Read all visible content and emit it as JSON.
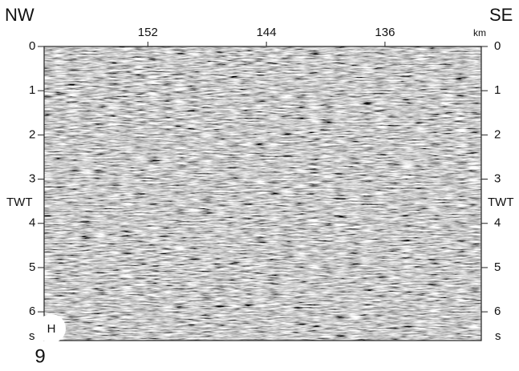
{
  "left_label": "NW",
  "right_label": "SE",
  "x_axis": {
    "ticks": [
      152,
      144,
      136
    ],
    "unit": "km",
    "xlim": [
      159,
      129.5
    ]
  },
  "y_axis": {
    "label": "TWT",
    "unit": "s",
    "ticks": [
      0,
      1,
      2,
      3,
      4,
      5,
      6
    ],
    "ylim": [
      0,
      6.65
    ]
  },
  "panel_label": "H",
  "figure_number": "9"
}
